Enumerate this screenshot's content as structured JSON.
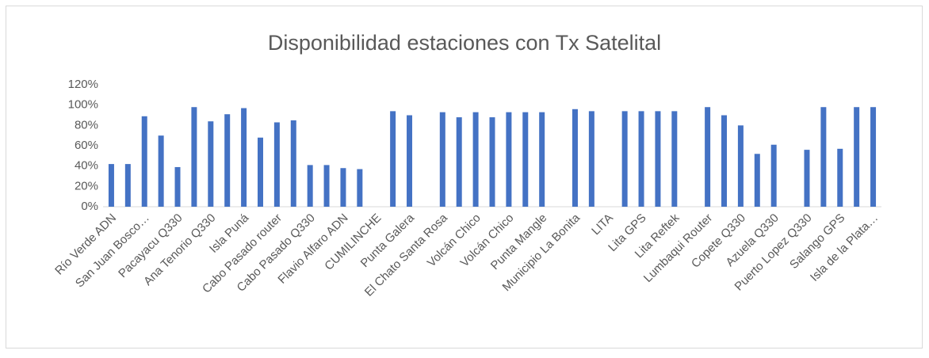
{
  "chart_data": {
    "type": "bar",
    "title": "Disponibilidad estaciones con Tx Satelital",
    "categories": [
      "Río Verde ADN",
      null,
      "San Juan Bosco…",
      null,
      "Pacayacu Q330",
      null,
      "Ana Tenorio Q330",
      null,
      "Isla Puná",
      null,
      "Cabo Pasado router",
      null,
      "Cabo Pasado Q330",
      null,
      "Flavio Alfaro ADN",
      null,
      "CUMILINCHE",
      null,
      "Punta Galera",
      null,
      "El Chato Santa Rosa",
      null,
      "Volcán Chico",
      null,
      "Volcán Chico",
      null,
      "Punta Mangle",
      null,
      "Municipio La Bonita",
      null,
      "LITA",
      null,
      "Lita GPS",
      null,
      "Lita Reftek",
      null,
      "Lumbaqui Router",
      null,
      "Copete Q330",
      null,
      "Azuela Q330",
      null,
      "Puerto Lopez Q330",
      null,
      "Salango GPS",
      null,
      "Isla de la Plata…"
    ],
    "values": [
      42,
      42,
      89,
      70,
      39,
      98,
      84,
      91,
      97,
      68,
      83,
      85,
      41,
      41,
      38,
      37,
      0,
      94,
      90,
      0,
      93,
      88,
      93,
      88,
      93,
      93,
      93,
      0,
      96,
      94,
      0,
      94,
      94,
      94,
      94,
      0,
      98,
      90,
      80,
      52,
      61,
      0,
      56,
      98,
      57,
      98,
      98
    ],
    "color": "#4472c4",
    "ylim": [
      0,
      120
    ],
    "yticks": [
      {
        "value": 0,
        "label": "0%"
      },
      {
        "value": 20,
        "label": "20%"
      },
      {
        "value": 40,
        "label": "40%"
      },
      {
        "value": 60,
        "label": "60%"
      },
      {
        "value": 80,
        "label": "80%"
      },
      {
        "value": 100,
        "label": "100%"
      },
      {
        "value": 120,
        "label": "120%"
      }
    ],
    "grid": false
  }
}
